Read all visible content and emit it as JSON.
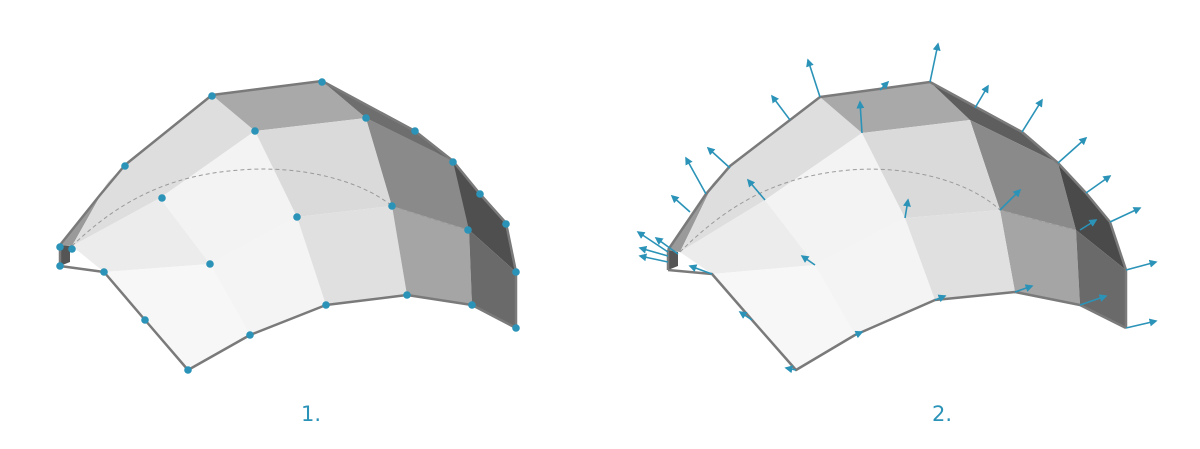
{
  "colors": {
    "accent": "#2b93b8",
    "edge": "#7a7a7a",
    "face_light": "#f7f7f7",
    "face_mid": "#dcdcdc",
    "face_dark": "#8f8f8f",
    "face_darkest": "#5a5a5a"
  },
  "panels": [
    {
      "caption": "1.",
      "marker": "control-point"
    },
    {
      "caption": "2.",
      "marker": "normal-vector-arrow"
    }
  ]
}
